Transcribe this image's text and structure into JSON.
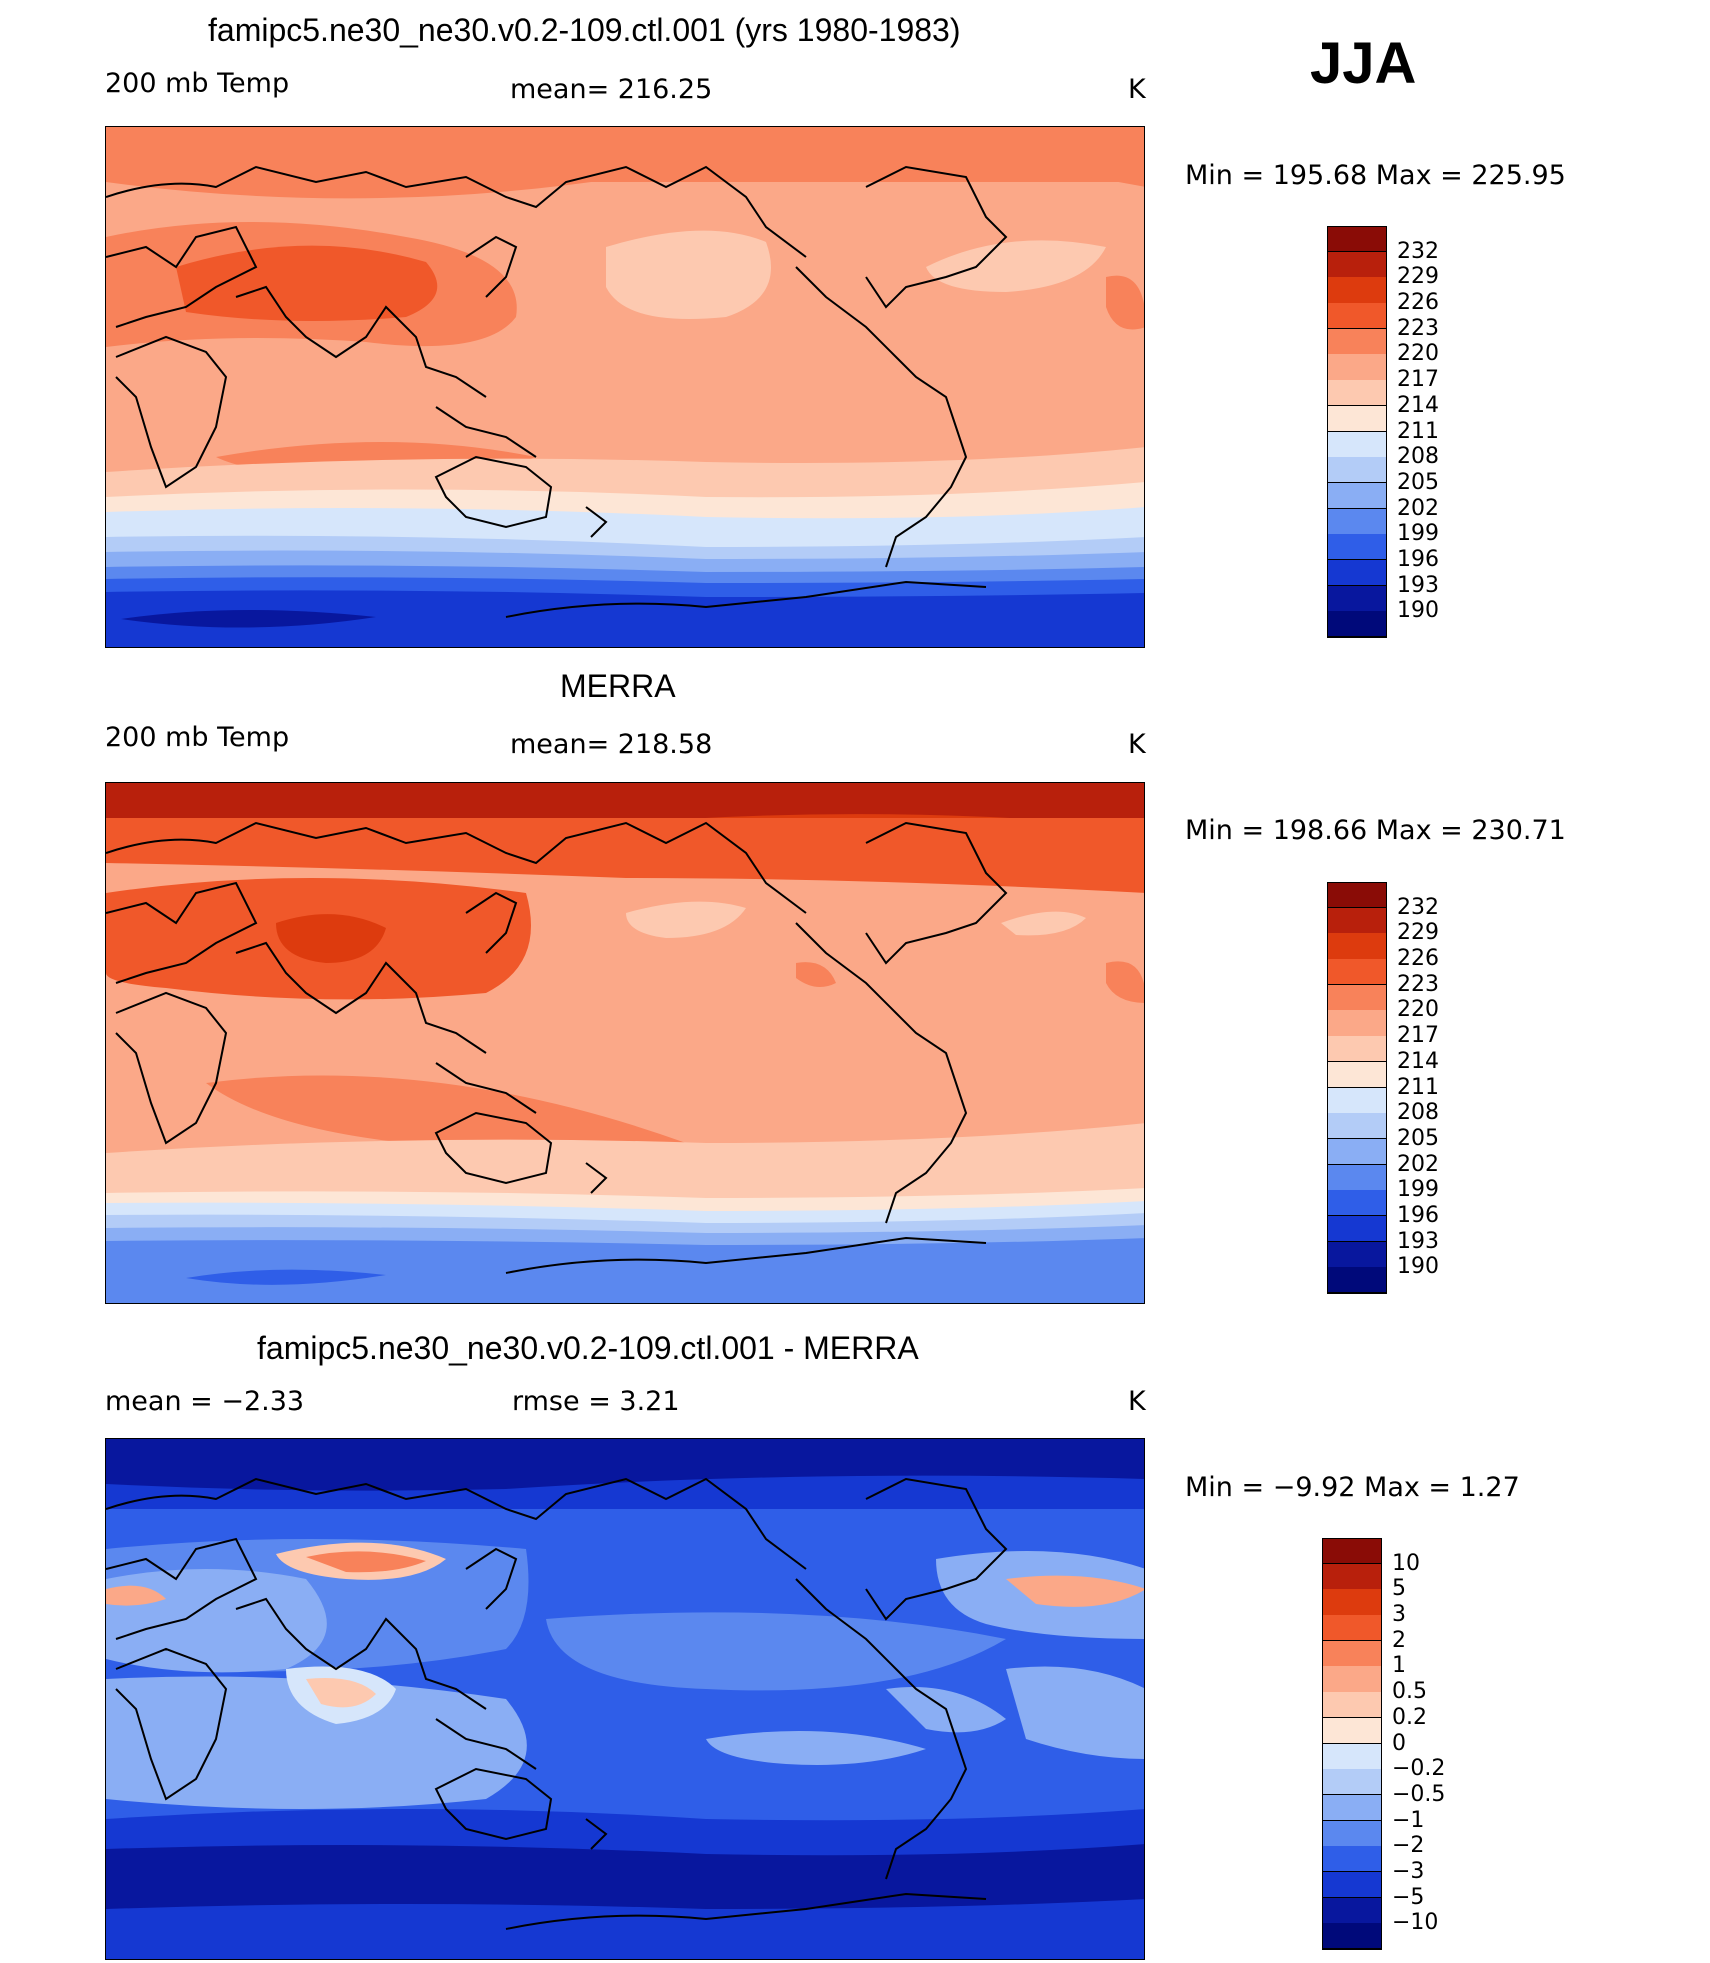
{
  "season": "JJA",
  "panels": [
    {
      "title": "famipc5.ne30_ne30.v0.2-109.ctl.001 (yrs 1980-1983)",
      "left_label": "200 mb Temp",
      "center_label": "mean=  216.25",
      "units": "K",
      "minmax": "Min  =  195.68  Max  =  225.95",
      "levels": [
        "232",
        "229",
        "226",
        "223",
        "220",
        "217",
        "214",
        "211",
        "208",
        "205",
        "202",
        "199",
        "196",
        "193",
        "190"
      ]
    },
    {
      "title": "MERRA",
      "left_label": "200 mb Temp",
      "center_label": "mean=  218.58",
      "units": "K",
      "minmax": "Min  =  198.66  Max  =  230.71",
      "levels": [
        "232",
        "229",
        "226",
        "223",
        "220",
        "217",
        "214",
        "211",
        "208",
        "205",
        "202",
        "199",
        "196",
        "193",
        "190"
      ]
    },
    {
      "title": "famipc5.ne30_ne30.v0.2-109.ctl.001 - MERRA",
      "left_label": "mean  =    −2.33",
      "center_label": "rmse  =     3.21",
      "units": "K",
      "minmax": "Min  =    −9.92  Max  =      1.27",
      "levels": [
        "10",
        "5",
        "3",
        "2",
        "1",
        "0.5",
        "0.2",
        "0",
        "−0.2",
        "−0.5",
        "−1",
        "−2",
        "−3",
        "−5",
        "−10"
      ]
    }
  ],
  "colorbar_colors": [
    "#8a0c06",
    "#b8200c",
    "#dd3b0e",
    "#f0582a",
    "#f8825a",
    "#fba888",
    "#fdc9b0",
    "#fde6d6",
    "#d6e6fb",
    "#b3ccf7",
    "#8aaef4",
    "#5b88ef",
    "#2f5ee8",
    "#1538d2",
    "#08179e",
    "#00097a"
  ]
}
